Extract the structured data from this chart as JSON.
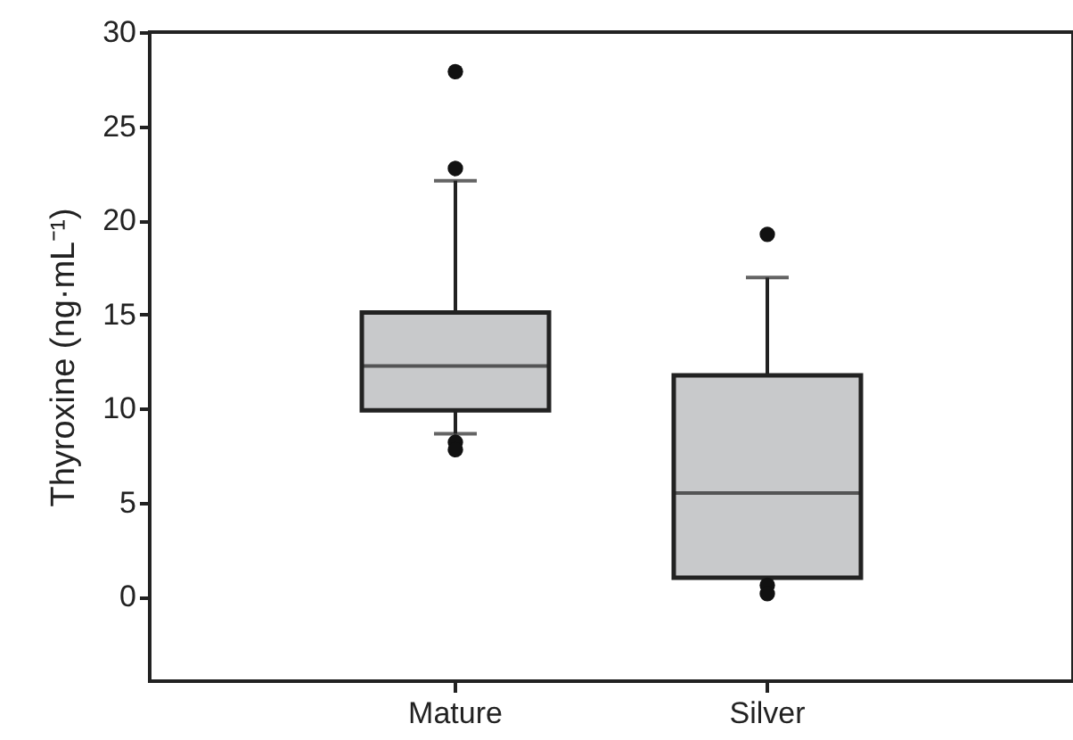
{
  "chart_data": {
    "type": "box",
    "ylabel": "Thyroxine (ng·mL⁻¹)",
    "categories": [
      "Mature",
      "Silver"
    ],
    "color": "#c8c9cb",
    "boxes": [
      {
        "low": 8.65,
        "q1": 9.9,
        "median": 12.25,
        "q3": 15.1,
        "high": 22.1,
        "outliers": [
          27.9,
          22.75,
          8.2,
          7.8
        ]
      },
      {
        "low": 1.0,
        "q1": 1.0,
        "median": 5.5,
        "q3": 11.75,
        "high": 16.95,
        "outliers": [
          19.25,
          0.6,
          0.15
        ]
      }
    ],
    "ylim": [
      -4.5,
      30
    ],
    "yticks": [
      0,
      5,
      10,
      15,
      20,
      25,
      30
    ],
    "grid": false
  }
}
